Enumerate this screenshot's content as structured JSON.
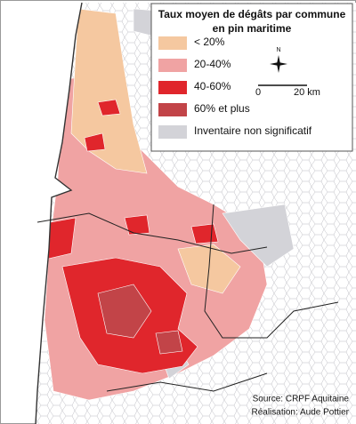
{
  "title": [
    "Taux moyen de dégâts par commune",
    "en pin maritime"
  ],
  "legend": {
    "items": [
      {
        "label": "< 20%",
        "color": "#f5c8a0"
      },
      {
        "label": "20-40%",
        "color": "#f0a3a3"
      },
      {
        "label": "40-60%",
        "color": "#e0262c"
      },
      {
        "label": "60% et plus",
        "color": "#c24448"
      },
      {
        "label": "Inventaire non significatif",
        "color": "#d3d3d8"
      }
    ]
  },
  "north": "N",
  "scale": {
    "start": "0",
    "end": "20 km"
  },
  "source": "Source: CRPF Aquitaine",
  "credit": "Réalisation: Aude Pottier"
}
